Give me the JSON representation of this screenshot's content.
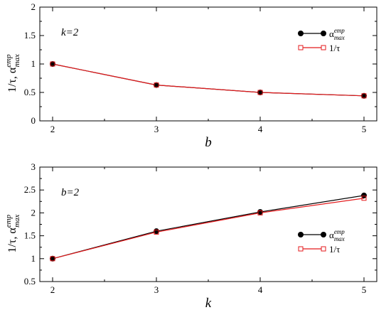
{
  "chart_data": [
    {
      "type": "line",
      "annotation": "k=2",
      "xlabel": "b",
      "ylabel": "1/τ, α",
      "ylabel_sup": "emp",
      "ylabel_sub": "max",
      "x": [
        2,
        3,
        4,
        5
      ],
      "xlim": [
        2,
        5
      ],
      "ylim": [
        0,
        2
      ],
      "xticks": [
        "2",
        "3",
        "4",
        "5"
      ],
      "yticks": [
        "0",
        "0.5",
        "1",
        "1.5",
        "2"
      ],
      "legend_position": "upper-right",
      "series": [
        {
          "name": "α",
          "name_sup": "emp",
          "name_sub": "max",
          "values": [
            1.0,
            0.63,
            0.5,
            0.44
          ],
          "color": "#000000",
          "marker": "filled-circle"
        },
        {
          "name": "1/τ",
          "values": [
            1.0,
            0.63,
            0.5,
            0.44
          ],
          "color": "#e41a1c",
          "marker": "open-square"
        }
      ]
    },
    {
      "type": "line",
      "annotation": "b=2",
      "xlabel": "k",
      "ylabel": "1/τ, α",
      "ylabel_sup": "emp",
      "ylabel_sub": "max",
      "x": [
        2,
        3,
        4,
        5
      ],
      "xlim": [
        2,
        5
      ],
      "ylim": [
        0.5,
        3
      ],
      "xticks": [
        "2",
        "3",
        "4",
        "5"
      ],
      "yticks": [
        "0.5",
        "1",
        "1.5",
        "2",
        "2.5",
        "3"
      ],
      "legend_position": "lower-right",
      "series": [
        {
          "name": "α",
          "name_sup": "emp",
          "name_sub": "max",
          "values": [
            1.0,
            1.6,
            2.02,
            2.38
          ],
          "color": "#000000",
          "marker": "filled-circle"
        },
        {
          "name": "1/τ",
          "values": [
            1.0,
            1.58,
            2.0,
            2.32
          ],
          "color": "#e41a1c",
          "marker": "open-square"
        }
      ]
    }
  ]
}
